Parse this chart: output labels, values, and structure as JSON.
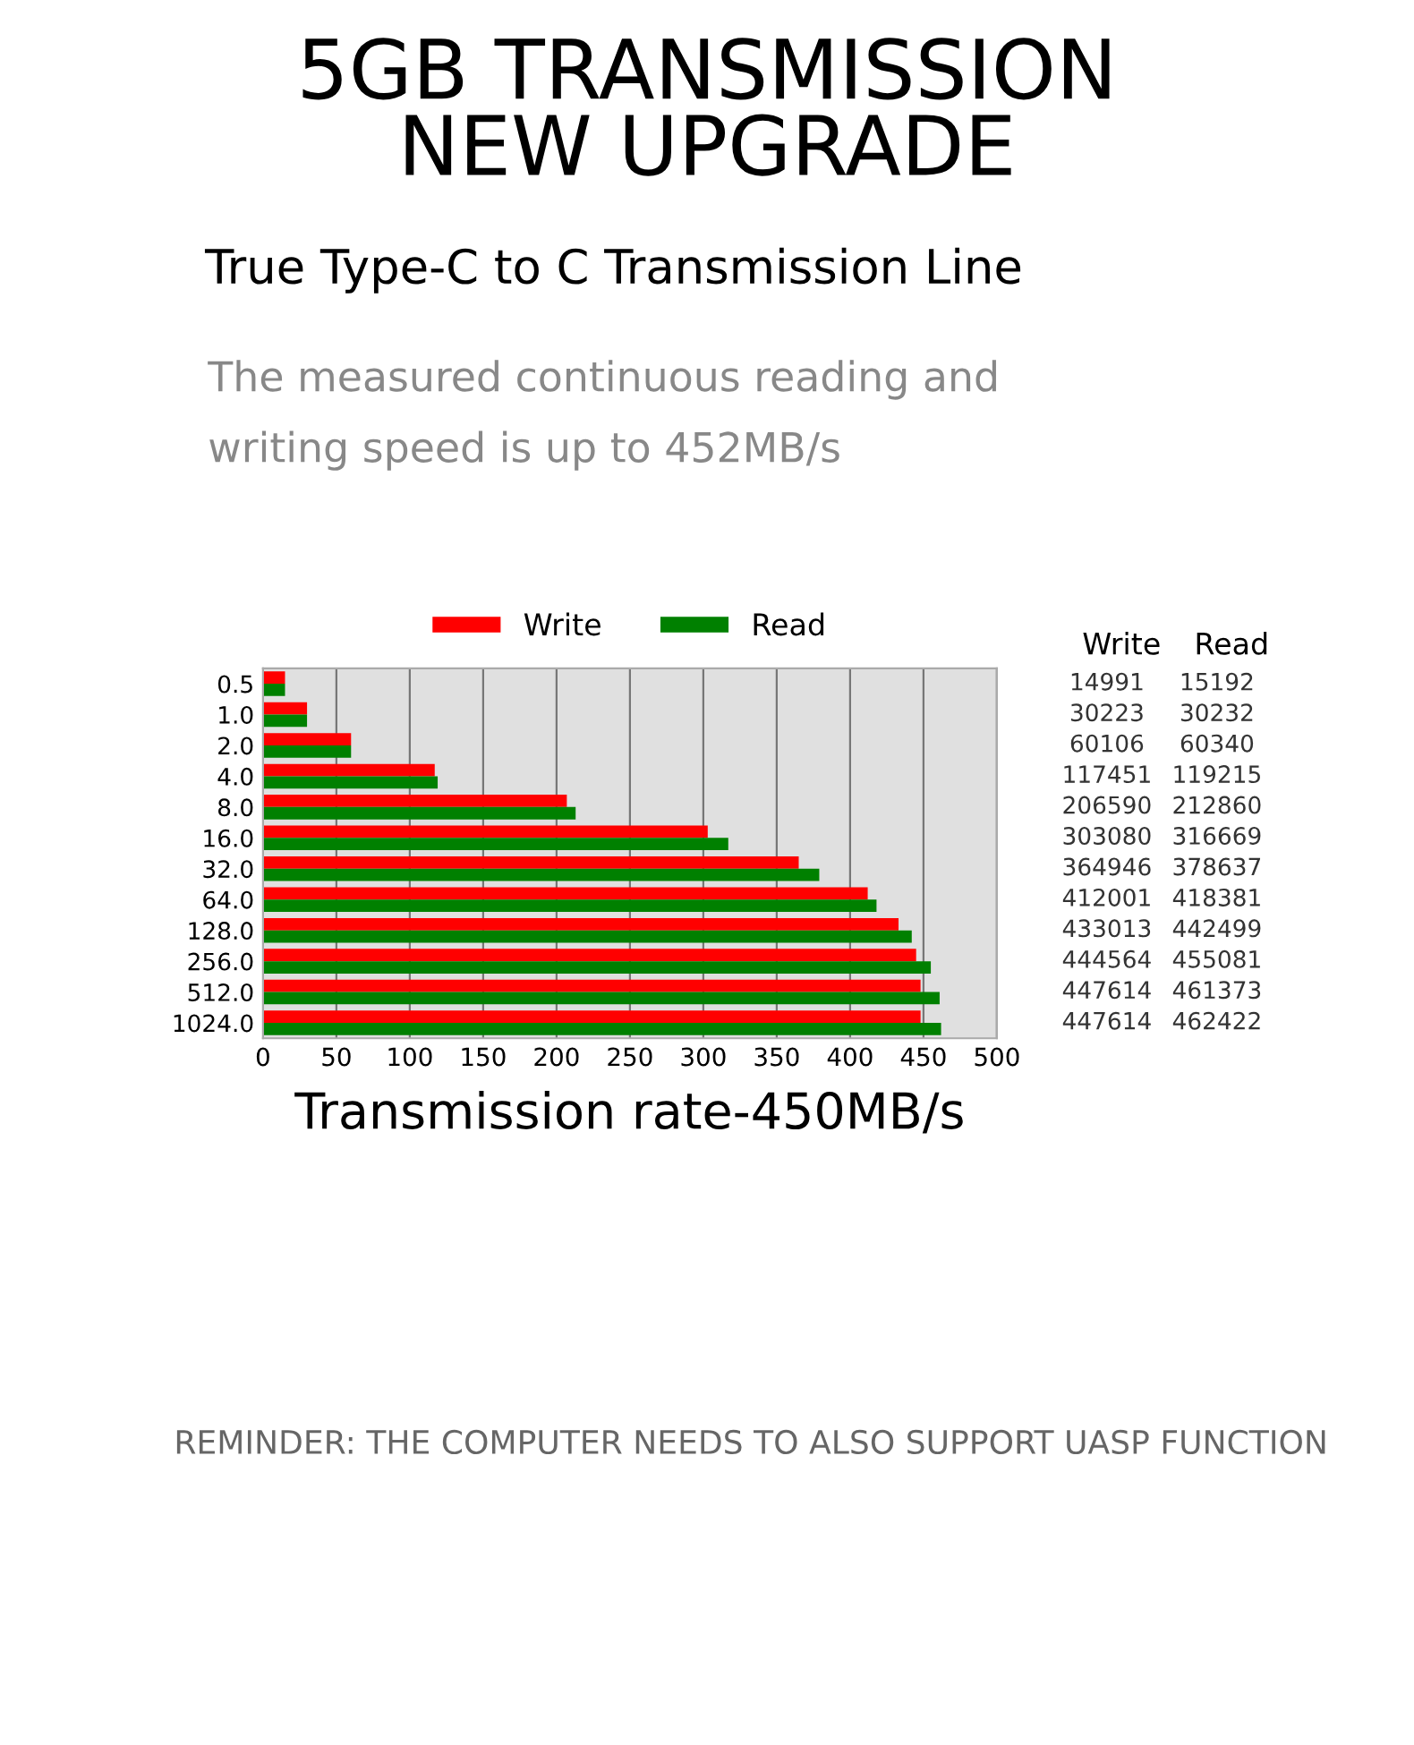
{
  "chart_data": {
    "type": "bar",
    "orientation": "horizontal",
    "title": "5GB TRANSMISSION\nNEW UPGRADE",
    "subtitle": "True Type-C to C Transmission Line",
    "xlabel": "Transmission rate-450MB/s",
    "annotations": [
      "The measured continuous reading and\nwriting speed is up to 452MB/s",
      "REMINDER: THE COMPUTER NEEDS TO ALSO SUPPORT UASP FUNCTION",
      "Write",
      "Read",
      "14991",
      "15192",
      "30223",
      "30232",
      "60106",
      "60340",
      "117451",
      "119215",
      "206590",
      "212860",
      "303080",
      "316669",
      "364946",
      "378637",
      "412001",
      "418381",
      "433013",
      "442499",
      "444564",
      "455081",
      "447614",
      "461373",
      "447614",
      "462422"
    ],
    "categories": [
      "0.5",
      "1.0",
      "2.0",
      "4.0",
      "8.0",
      "16.0",
      "32.0",
      "64.0",
      "128.0",
      "256.0",
      "512.0",
      "1024.0"
    ],
    "series": [
      {
        "name": "Write",
        "color": "#ff0000",
        "values": [
          15,
          30,
          60,
          117,
          207,
          303,
          365,
          412,
          433,
          445,
          448,
          448
        ]
      },
      {
        "name": "Read",
        "color": "#008000",
        "values": [
          15,
          30,
          60,
          119,
          213,
          317,
          379,
          418,
          442,
          455,
          461,
          462
        ]
      }
    ],
    "xlim": [
      0,
      500
    ],
    "xticks": [
      0,
      50,
      100,
      150,
      200,
      250,
      300,
      350,
      400,
      450,
      500
    ],
    "grid": "x",
    "legend": "top"
  }
}
